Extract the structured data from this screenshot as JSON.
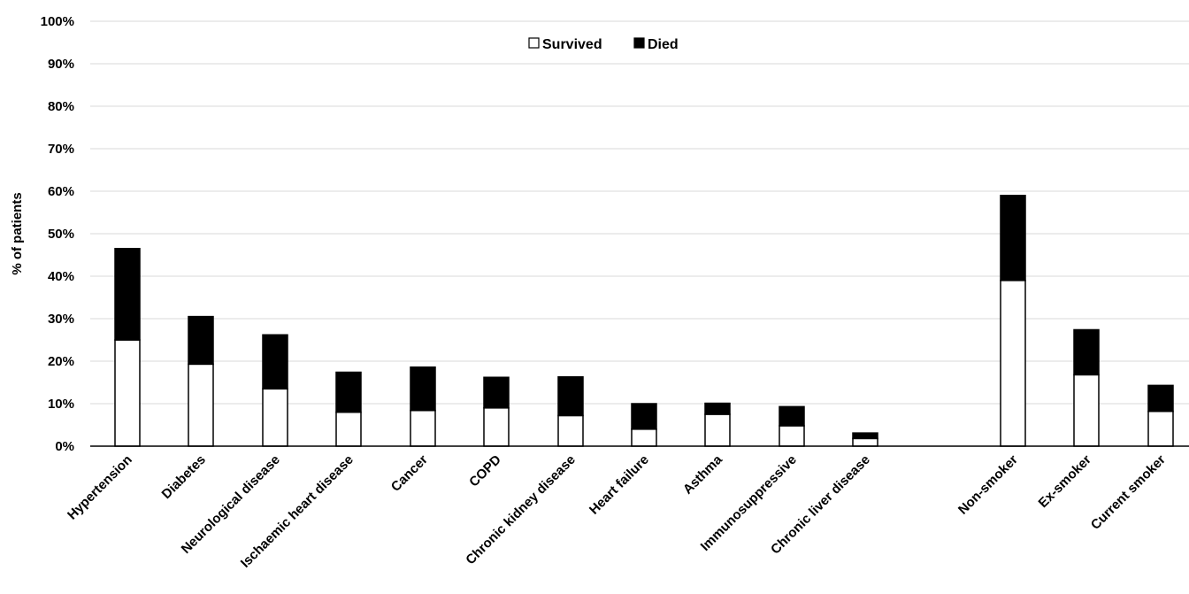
{
  "chart_data": {
    "type": "bar",
    "stacked": true,
    "ylabel": "% of patients",
    "ylim": [
      0,
      100
    ],
    "yticks": [
      "0%",
      "10%",
      "20%",
      "30%",
      "40%",
      "50%",
      "60%",
      "70%",
      "80%",
      "90%",
      "100%"
    ],
    "grid": true,
    "legend_position": "top-center",
    "categories": [
      "Hypertension",
      "Diabetes",
      "Neurological disease",
      "Ischaemic heart disease",
      "Cancer",
      "COPD",
      "Chronic kidney disease",
      "Heart failure",
      "Asthma",
      "Immunosuppressive",
      "Chronic liver disease",
      "Non-smoker",
      "Ex-smoker",
      "Current smoker"
    ],
    "series": [
      {
        "name": "Survived",
        "color": "#ffffff",
        "values": [
          25,
          19.3,
          13.5,
          8,
          8.4,
          9,
          7.2,
          4,
          7.5,
          4.8,
          1.8,
          39,
          16.8,
          8.2
        ]
      },
      {
        "name": "Died",
        "color": "#000000",
        "values": [
          21.5,
          11.2,
          12.7,
          9.4,
          10.2,
          7.2,
          9.1,
          6,
          2.6,
          4.5,
          1.3,
          20,
          10.6,
          6.1
        ]
      }
    ]
  }
}
